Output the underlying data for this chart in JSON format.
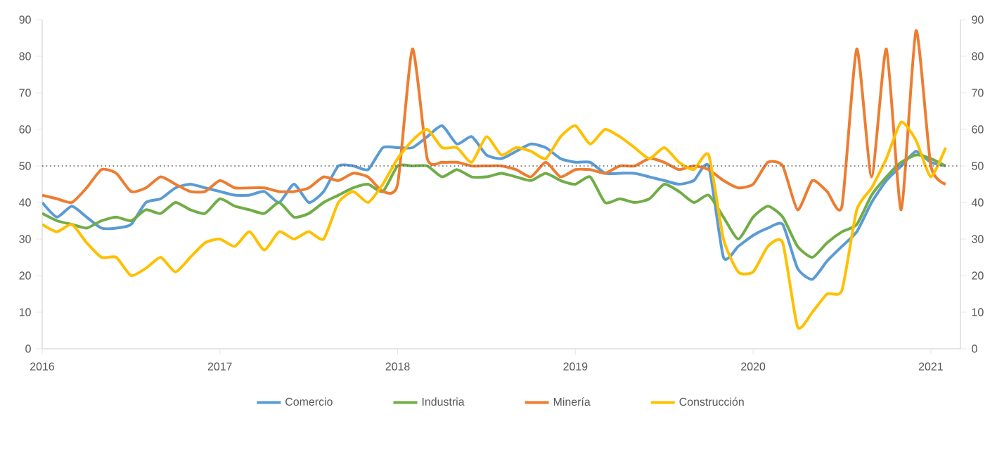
{
  "chart_data": {
    "type": "line",
    "x": [
      "2016-01",
      "2016-02",
      "2016-03",
      "2016-04",
      "2016-05",
      "2016-06",
      "2016-07",
      "2016-08",
      "2016-09",
      "2016-10",
      "2016-11",
      "2016-12",
      "2017-01",
      "2017-02",
      "2017-03",
      "2017-04",
      "2017-05",
      "2017-06",
      "2017-07",
      "2017-08",
      "2017-09",
      "2017-10",
      "2017-11",
      "2017-12",
      "2018-01",
      "2018-02",
      "2018-03",
      "2018-04",
      "2018-05",
      "2018-06",
      "2018-07",
      "2018-08",
      "2018-09",
      "2018-10",
      "2018-11",
      "2018-12",
      "2019-01",
      "2019-02",
      "2019-03",
      "2019-04",
      "2019-05",
      "2019-06",
      "2019-07",
      "2019-08",
      "2019-09",
      "2019-10",
      "2019-11",
      "2019-12",
      "2020-01",
      "2020-02",
      "2020-03",
      "2020-04",
      "2020-05",
      "2020-06",
      "2020-07",
      "2020-08",
      "2020-09",
      "2020-10",
      "2020-11",
      "2020-12",
      "2021-01",
      "2021-02"
    ],
    "series": [
      {
        "name": "Comercio",
        "color": "#5b9bd5",
        "values": [
          40,
          36,
          39,
          36,
          33,
          33,
          34,
          40,
          41,
          44,
          45,
          44,
          43,
          42,
          42,
          43,
          40,
          45,
          40,
          43,
          50,
          50,
          49,
          55,
          55,
          55,
          58,
          61,
          56,
          58,
          53,
          52,
          54,
          56,
          55,
          52,
          51,
          51,
          48,
          48,
          48,
          47,
          46,
          45,
          46,
          50,
          25,
          28,
          31,
          33,
          34,
          22,
          19,
          24,
          28,
          32,
          40,
          46,
          50,
          54,
          51,
          50
        ]
      },
      {
        "name": "Industria",
        "color": "#70ad47",
        "values": [
          37,
          35,
          34,
          33,
          35,
          36,
          35,
          38,
          37,
          40,
          38,
          37,
          41,
          39,
          38,
          37,
          40,
          36,
          37,
          40,
          42,
          44,
          45,
          43,
          50,
          50,
          50,
          47,
          49,
          47,
          47,
          48,
          47,
          46,
          48,
          46,
          45,
          47,
          40,
          41,
          40,
          41,
          45,
          43,
          40,
          42,
          36,
          30,
          36,
          39,
          36,
          28,
          25,
          29,
          32,
          34,
          42,
          47,
          51,
          53,
          52,
          50
        ]
      },
      {
        "name": "Minería",
        "color": "#ed7d31",
        "values": [
          42,
          41,
          40,
          44,
          49,
          48,
          43,
          44,
          47,
          45,
          43,
          43,
          46,
          44,
          44,
          44,
          43,
          43,
          44,
          47,
          46,
          48,
          47,
          43,
          45,
          82,
          52,
          51,
          51,
          50,
          50,
          50,
          49,
          47,
          51,
          47,
          49,
          49,
          48,
          50,
          50,
          52,
          51,
          49,
          50,
          49,
          46,
          44,
          45,
          51,
          50,
          38,
          46,
          43,
          39,
          82,
          47,
          82,
          38,
          87,
          50,
          45
        ]
      },
      {
        "name": "Construcción",
        "color": "#ffc000",
        "values": [
          34,
          32,
          34,
          29,
          25,
          25,
          20,
          22,
          25,
          21,
          25,
          29,
          30,
          28,
          32,
          27,
          32,
          30,
          32,
          30,
          40,
          43,
          40,
          45,
          52,
          57,
          60,
          55,
          55,
          51,
          58,
          53,
          55,
          54,
          52,
          58,
          61,
          56,
          60,
          58,
          55,
          52,
          55,
          51,
          49,
          53,
          30,
          21,
          21,
          28,
          29,
          6,
          10,
          15,
          16,
          38,
          44,
          52,
          62,
          57,
          47,
          55
        ]
      }
    ],
    "xlim": [
      "2016-01",
      "2021-03"
    ],
    "xticks": [
      {
        "value": "2016-01",
        "label": "2016"
      },
      {
        "value": "2017-01",
        "label": "2017"
      },
      {
        "value": "2018-01",
        "label": "2018"
      },
      {
        "value": "2019-01",
        "label": "2019"
      },
      {
        "value": "2020-01",
        "label": "2020"
      },
      {
        "value": "2021-01",
        "label": "2021"
      }
    ],
    "ylim": [
      0,
      90
    ],
    "yticks": [
      0,
      10,
      20,
      30,
      40,
      50,
      60,
      70,
      80,
      90
    ],
    "y2lim": [
      0,
      90
    ],
    "y2ticks": [
      0,
      10,
      20,
      30,
      40,
      50,
      60,
      70,
      80,
      90
    ],
    "ref_lines": [
      {
        "axis": "y",
        "value": 50,
        "color": "#595959",
        "line_style": "dotted"
      }
    ],
    "grid": false,
    "legend": "bottom",
    "marker": "none",
    "line_style": "solid"
  }
}
